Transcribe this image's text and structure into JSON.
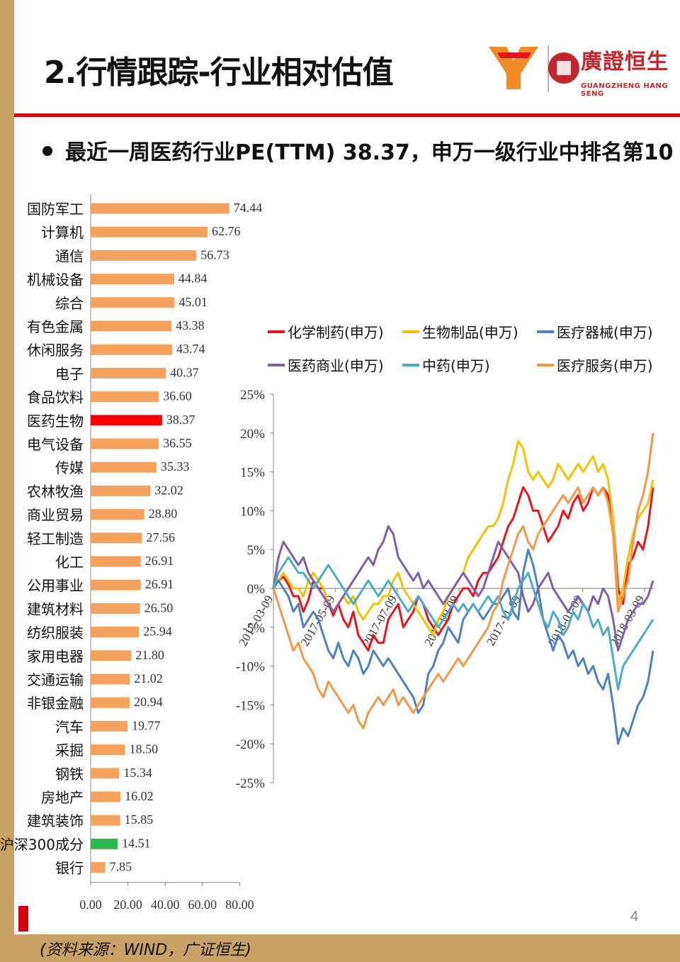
{
  "page": {
    "title": "2.行情跟踪-行业相对估值",
    "subtitle": "最近一周医药行业PE(TTM) 38.37，申万一级行业中排名第10",
    "source": "(资料来源：WIND，广证恒生)",
    "page_number": "4",
    "logo": {
      "name": "廣證恒生",
      "english": "GUANGZHENG HANG SENG"
    },
    "colors": {
      "accent": "#d7000f",
      "gold": "#c8a165",
      "bar": "#f4a25e",
      "highlight": "#ff0000",
      "hs300": "#2db84d"
    }
  },
  "chart_data": [
    {
      "type": "bar",
      "orientation": "horizontal",
      "categories": [
        "国防军工",
        "计算机",
        "通信",
        "机械设备",
        "综合",
        "有色金属",
        "休闲服务",
        "电子",
        "食品饮料",
        "医药生物",
        "电气设备",
        "传媒",
        "农林牧渔",
        "商业贸易",
        "轻工制造",
        "化工",
        "公用事业",
        "建筑材料",
        "纺织服装",
        "家用电器",
        "交通运输",
        "非银金融",
        "汽车",
        "采掘",
        "钢铁",
        "房地产",
        "建筑装饰",
        "沪深300成分",
        "银行"
      ],
      "values": [
        74.44,
        62.76,
        56.73,
        44.84,
        45.01,
        43.38,
        43.74,
        40.37,
        36.6,
        38.37,
        36.55,
        35.33,
        32.02,
        28.8,
        27.56,
        26.91,
        26.91,
        26.5,
        25.94,
        21.8,
        21.02,
        20.94,
        19.77,
        18.5,
        15.34,
        16.02,
        15.85,
        14.51,
        7.85
      ],
      "value_labels": [
        "74.44",
        "62.76",
        "56.73",
        "44.84",
        "45.01",
        "43.38",
        "43.74",
        "40.37",
        "36.60",
        "38.37",
        "36.55",
        "35.33",
        "32.02",
        "28.80",
        "27.56",
        "26.91",
        "26.91",
        "26.50",
        "25.94",
        "21.80",
        "21.02",
        "20.94",
        "19.77",
        "18.50",
        "15.34",
        "16.02",
        "15.85",
        "14.51",
        "7.85"
      ],
      "highlight": {
        "医药生物": "#ff0000",
        "沪深300成分": "#2db84d"
      },
      "bar_color": "#f4a25e",
      "xlim": [
        0,
        80
      ],
      "xticks": [
        "0.00",
        "20.00",
        "40.00",
        "60.00",
        "80.00"
      ]
    },
    {
      "type": "line",
      "yticks": [
        "25%",
        "20%",
        "15%",
        "10%",
        "5%",
        "0%",
        "-5%",
        "-10%",
        "-15%",
        "-20%",
        "-25%"
      ],
      "ylim": [
        -25,
        25
      ],
      "xticks": [
        "2017-03-09",
        "2017-05-09",
        "2017-07-09",
        "2017-09-09",
        "2017-11-09",
        "2018-01-09",
        "2018-03-09"
      ],
      "legend_position": "top",
      "series": [
        {
          "name": "化学制药(申万)",
          "color": "#e8141c",
          "values": [
            0,
            1,
            1.5,
            0.5,
            -1,
            -1,
            -3,
            -1.5,
            1,
            0,
            0,
            -2,
            -3.5,
            -2,
            -4,
            -5,
            -3,
            -6,
            -7,
            -8,
            -6,
            -7,
            -7,
            -4,
            -3,
            -2,
            -5,
            -4,
            -3,
            -1,
            -2,
            -4,
            -5,
            -6,
            -5,
            -4,
            -2,
            -1,
            0,
            0,
            -1,
            1,
            2,
            2,
            3,
            4,
            6,
            8,
            9,
            11,
            13,
            12,
            10,
            10,
            8,
            6,
            7,
            8,
            10,
            9,
            11,
            12,
            10,
            11,
            13,
            12,
            13,
            12,
            9,
            0,
            -2,
            3,
            4,
            6,
            5,
            8,
            13
          ]
        },
        {
          "name": "生物制品(申万)",
          "color": "#f5c200",
          "values": [
            0,
            1,
            2,
            1,
            0,
            0,
            -1,
            1,
            2,
            1,
            0,
            -2,
            -3,
            -2,
            -1,
            -2,
            -1,
            -3,
            -4,
            -3,
            -2,
            -2,
            -1,
            -1,
            1,
            2,
            0,
            -1,
            -2,
            -3,
            -4,
            -5,
            -6,
            -4,
            -3,
            -1,
            0,
            1,
            2,
            4,
            5,
            6,
            7,
            8,
            8,
            9,
            11,
            14,
            16,
            19,
            18,
            15,
            14,
            15,
            14,
            13,
            14,
            16,
            15,
            14,
            15,
            16,
            15,
            16,
            17,
            15,
            16,
            14,
            9,
            -2,
            0,
            4,
            7,
            9,
            10,
            11,
            14
          ]
        },
        {
          "name": "医疗器械(申万)",
          "color": "#4f81bd",
          "values": [
            0,
            1,
            0,
            -1,
            -3,
            -2,
            -5,
            -4,
            -3,
            -4,
            -6,
            -8,
            -9,
            -7,
            -9,
            -10,
            -8,
            -9,
            -11,
            -10,
            -8,
            -9,
            -10,
            -9,
            -10,
            -11,
            -12,
            -13,
            -14,
            -16,
            -15,
            -11,
            -10,
            -8,
            -7,
            -5,
            -6,
            -7,
            -4,
            -3,
            -2,
            -3,
            -4,
            -3,
            -2,
            -2,
            -1,
            0,
            -3,
            -4,
            2,
            5,
            3,
            0,
            -4,
            -6,
            -8,
            -6,
            -7,
            -9,
            -8,
            -10,
            -9,
            -11,
            -10,
            -12,
            -13,
            -11,
            -15,
            -20,
            -18,
            -19,
            -17,
            -15,
            -14,
            -12,
            -8
          ]
        },
        {
          "name": "医药商业(申万)",
          "color": "#7f5fa9",
          "values": [
            0,
            4,
            6,
            5,
            4,
            3,
            4,
            2,
            1,
            0,
            -1,
            -2,
            -3,
            -2,
            -1,
            0,
            1,
            2,
            3,
            4,
            3,
            5,
            6,
            8,
            7,
            4,
            3,
            2,
            1,
            2,
            0,
            1,
            0,
            -1,
            -2,
            -1,
            0,
            1,
            2,
            1,
            0,
            -1,
            0,
            2,
            4,
            6,
            5,
            4,
            3,
            2,
            -1,
            -3,
            -2,
            0,
            1,
            2,
            0,
            -1,
            -2,
            -3,
            -2,
            -1,
            -2,
            -3,
            -1,
            -2,
            0,
            -1,
            -4,
            -8,
            -6,
            -4,
            -3,
            -2,
            -2,
            -1,
            1
          ]
        },
        {
          "name": "中药(申万)",
          "color": "#4bacc6",
          "values": [
            0,
            2,
            3,
            4,
            3,
            2,
            2,
            1,
            0,
            1,
            2,
            3,
            2,
            1,
            0,
            -1,
            -2,
            -1,
            0,
            1,
            0,
            -1,
            0,
            1,
            0,
            -1,
            -2,
            -3,
            -2,
            -1,
            -2,
            -3,
            -4,
            -5,
            -4,
            -3,
            -2,
            -3,
            -2,
            -3,
            -2,
            -3,
            -2,
            -1,
            -2,
            -1,
            -3,
            -4,
            -2,
            0,
            1,
            2,
            0,
            -2,
            -4,
            -5,
            -3,
            -4,
            -6,
            -5,
            -3,
            -4,
            -2,
            -3,
            -5,
            -4,
            -6,
            -5,
            -9,
            -13,
            -10,
            -9,
            -8,
            -7,
            -6,
            -5,
            -4
          ]
        },
        {
          "name": "医疗服务(申万)",
          "color": "#f79646",
          "values": [
            0,
            -2,
            -4,
            -6,
            -8,
            -7,
            -9,
            -10,
            -11,
            -13,
            -14,
            -12,
            -13,
            -14,
            -15,
            -16,
            -15,
            -17,
            -18,
            -16,
            -15,
            -14,
            -15,
            -14,
            -13,
            -15,
            -14,
            -15,
            -16,
            -15,
            -14,
            -13,
            -12,
            -11,
            -12,
            -11,
            -10,
            -9,
            -10,
            -9,
            -8,
            -7,
            -6,
            -5,
            -3,
            -2,
            1,
            3,
            5,
            7,
            8,
            6,
            5,
            7,
            8,
            9,
            10,
            11,
            12,
            11,
            12,
            13,
            11,
            12,
            13,
            12,
            13,
            11,
            7,
            -3,
            -1,
            1,
            6,
            10,
            12,
            15,
            20
          ]
        }
      ]
    }
  ]
}
